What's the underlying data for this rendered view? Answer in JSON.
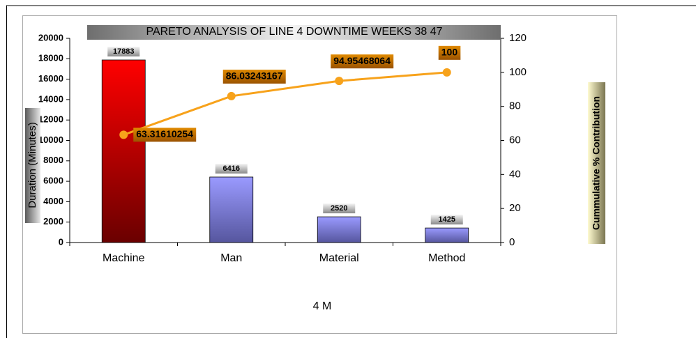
{
  "chart_data": {
    "type": "bar",
    "title": "PARETO ANALYSIS OF LINE 4 DOWNTIME WEEKS 38 47",
    "x_label": "4 M",
    "y_label": "Duration (Minutes)",
    "y2_label": "Cummulative % Contribution",
    "categories": [
      "Machine",
      "Man",
      "Material",
      "Method"
    ],
    "series": [
      {
        "type": "bar",
        "colors": [
          "#ff0000",
          "#9a9aff",
          "#9a9aff",
          "#9a9aff"
        ],
        "values": [
          17883,
          6416,
          2520,
          1425
        ]
      },
      {
        "type": "line",
        "axis": "y2",
        "color": "#f7a21b",
        "values": [
          63.31610254,
          86.03243167,
          94.95468064,
          100
        ]
      }
    ],
    "ylim": [
      0,
      20000
    ],
    "yticks": [
      0,
      2000,
      4000,
      6000,
      8000,
      10000,
      12000,
      14000,
      16000,
      18000,
      20000
    ],
    "y2lim": [
      0,
      120
    ],
    "y2ticks": [
      0,
      20,
      40,
      60,
      80,
      100,
      120
    ]
  }
}
